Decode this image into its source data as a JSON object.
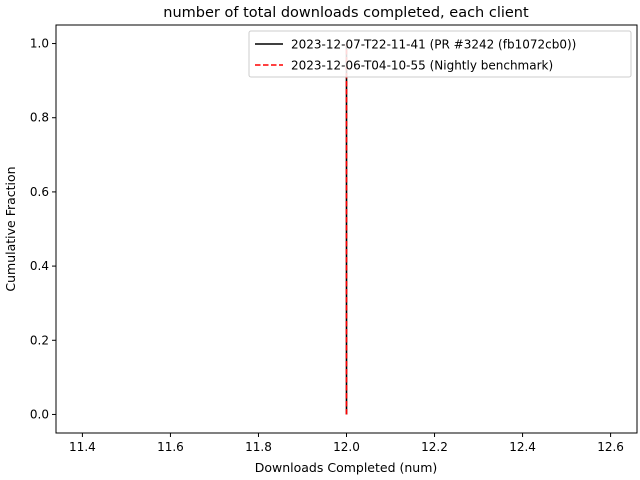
{
  "chart_data": {
    "type": "line",
    "title": "number of total downloads completed, each client",
    "xlabel": "Downloads Completed (num)",
    "ylabel": "Cumulative Fraction",
    "xlim": [
      11.34,
      12.66
    ],
    "ylim": [
      -0.05,
      1.05
    ],
    "xticks": [
      11.4,
      11.6,
      11.8,
      12.0,
      12.2,
      12.4,
      12.6
    ],
    "xtick_labels": [
      "11.4",
      "11.6",
      "11.8",
      "12.0",
      "12.2",
      "12.4",
      "12.6"
    ],
    "yticks": [
      0.0,
      0.2,
      0.4,
      0.6,
      0.8,
      1.0
    ],
    "ytick_labels": [
      "0.0",
      "0.2",
      "0.4",
      "0.6",
      "0.8",
      "1.0"
    ],
    "grid": false,
    "legend_position": "upper right",
    "series": [
      {
        "name": "2023-12-07-T22-11-41 (PR #3242 (fb1072cb0))",
        "color": "#000000",
        "linestyle": "solid",
        "x": [
          12.0,
          12.0
        ],
        "y": [
          0.0,
          1.0
        ]
      },
      {
        "name": "2023-12-06-T04-10-55 (Nightly benchmark)",
        "color": "#ff0000",
        "linestyle": "dashed",
        "x": [
          12.0,
          12.0
        ],
        "y": [
          0.0,
          1.0
        ]
      }
    ]
  }
}
